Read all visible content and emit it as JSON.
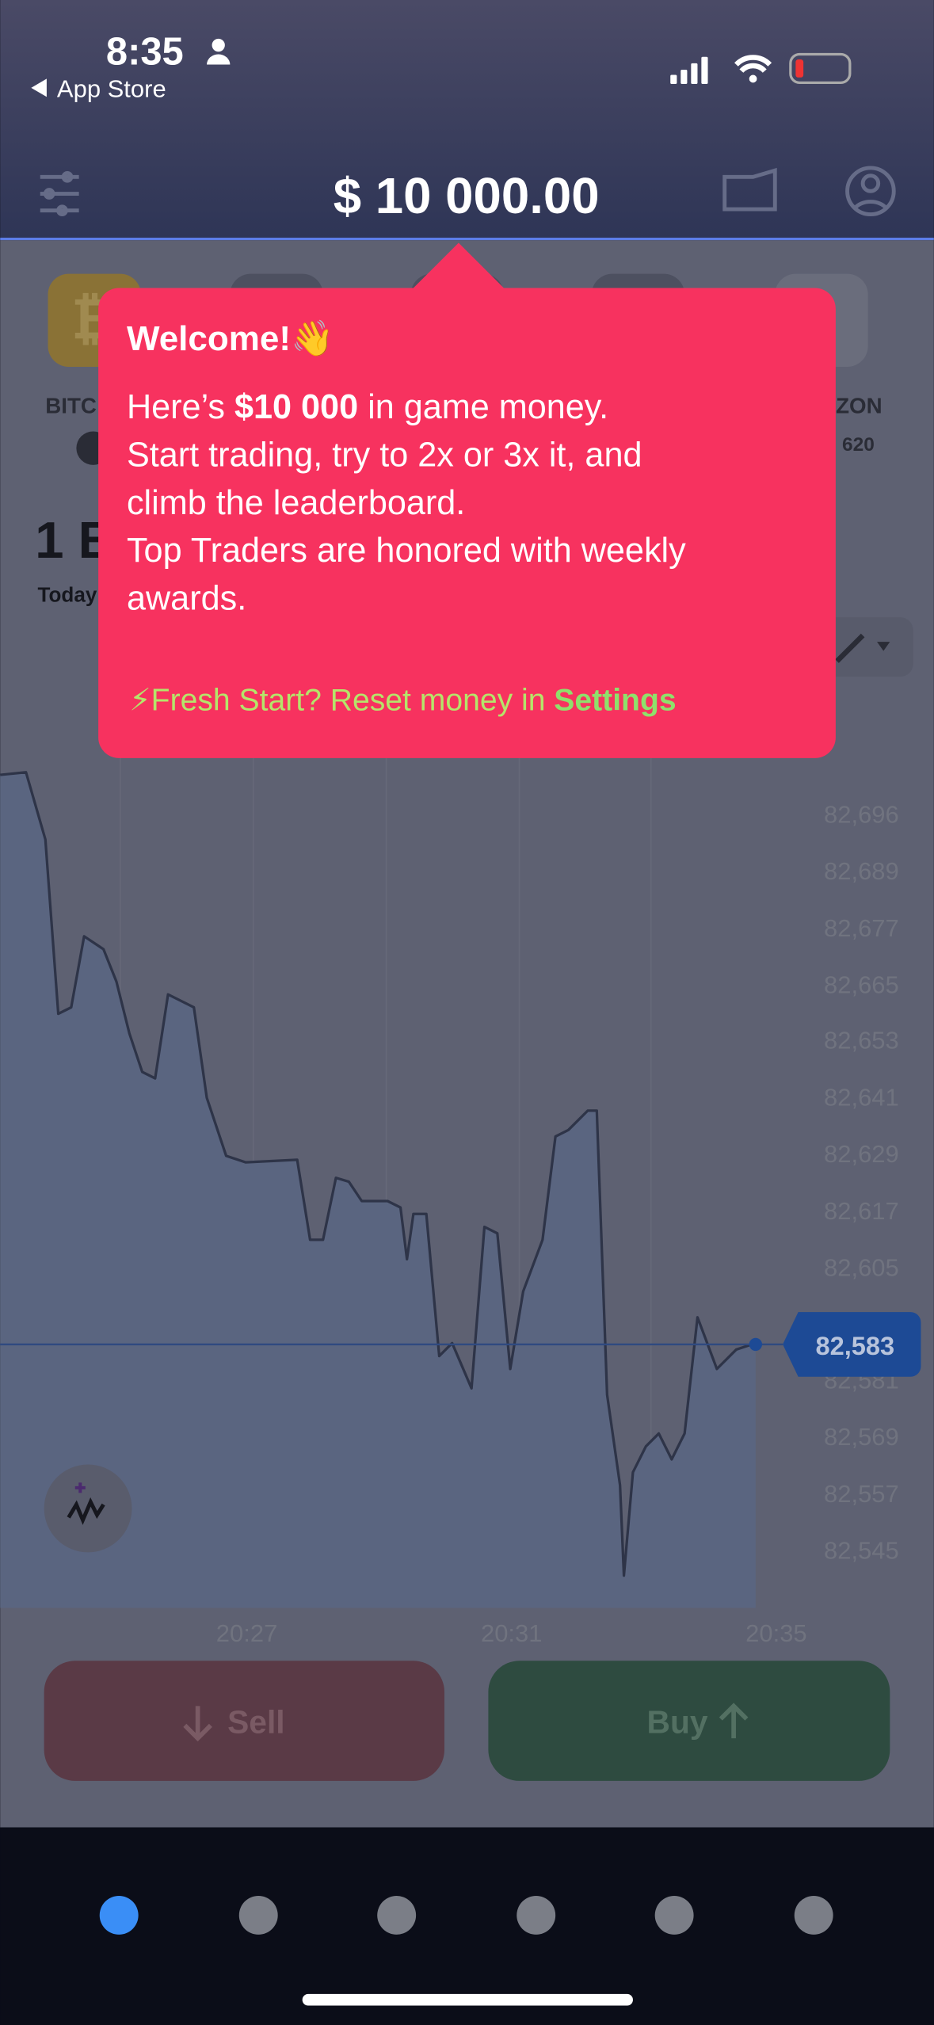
{
  "status_bar": {
    "time": "8:35",
    "back": "App Store"
  },
  "header": {
    "balance": "$ 10 000.00"
  },
  "assets": [
    {
      "name": "BITC"
    },
    {
      "name": "ZON",
      "price": "620"
    }
  ],
  "asset_title": "1 B",
  "period": "Today",
  "tooltip": {
    "title": "Welcome!👋",
    "line1": [
      "Here’s ",
      "$10 000",
      " in game money."
    ],
    "lines": [
      "Start trading, try to 2x or 3x it, and",
      "climb the leaderboard.",
      "Top Traders are honored with weekly",
      "awards."
    ],
    "footer": "⚡Fresh Start? Reset money in ",
    "footer_link": "Settings"
  },
  "chart": {
    "price_labels": [
      "82,696",
      "82,689",
      "82,677",
      "82,665",
      "82,653",
      "82,641",
      "82,629",
      "82,617",
      "82,605",
      "82,581",
      "82,569",
      "82,557",
      "82,545"
    ],
    "current_price": "82,583",
    "time_labels": [
      "20:27",
      "20:31",
      "20:35"
    ]
  },
  "buttons": {
    "sell": "Sell",
    "buy": "Buy"
  }
}
